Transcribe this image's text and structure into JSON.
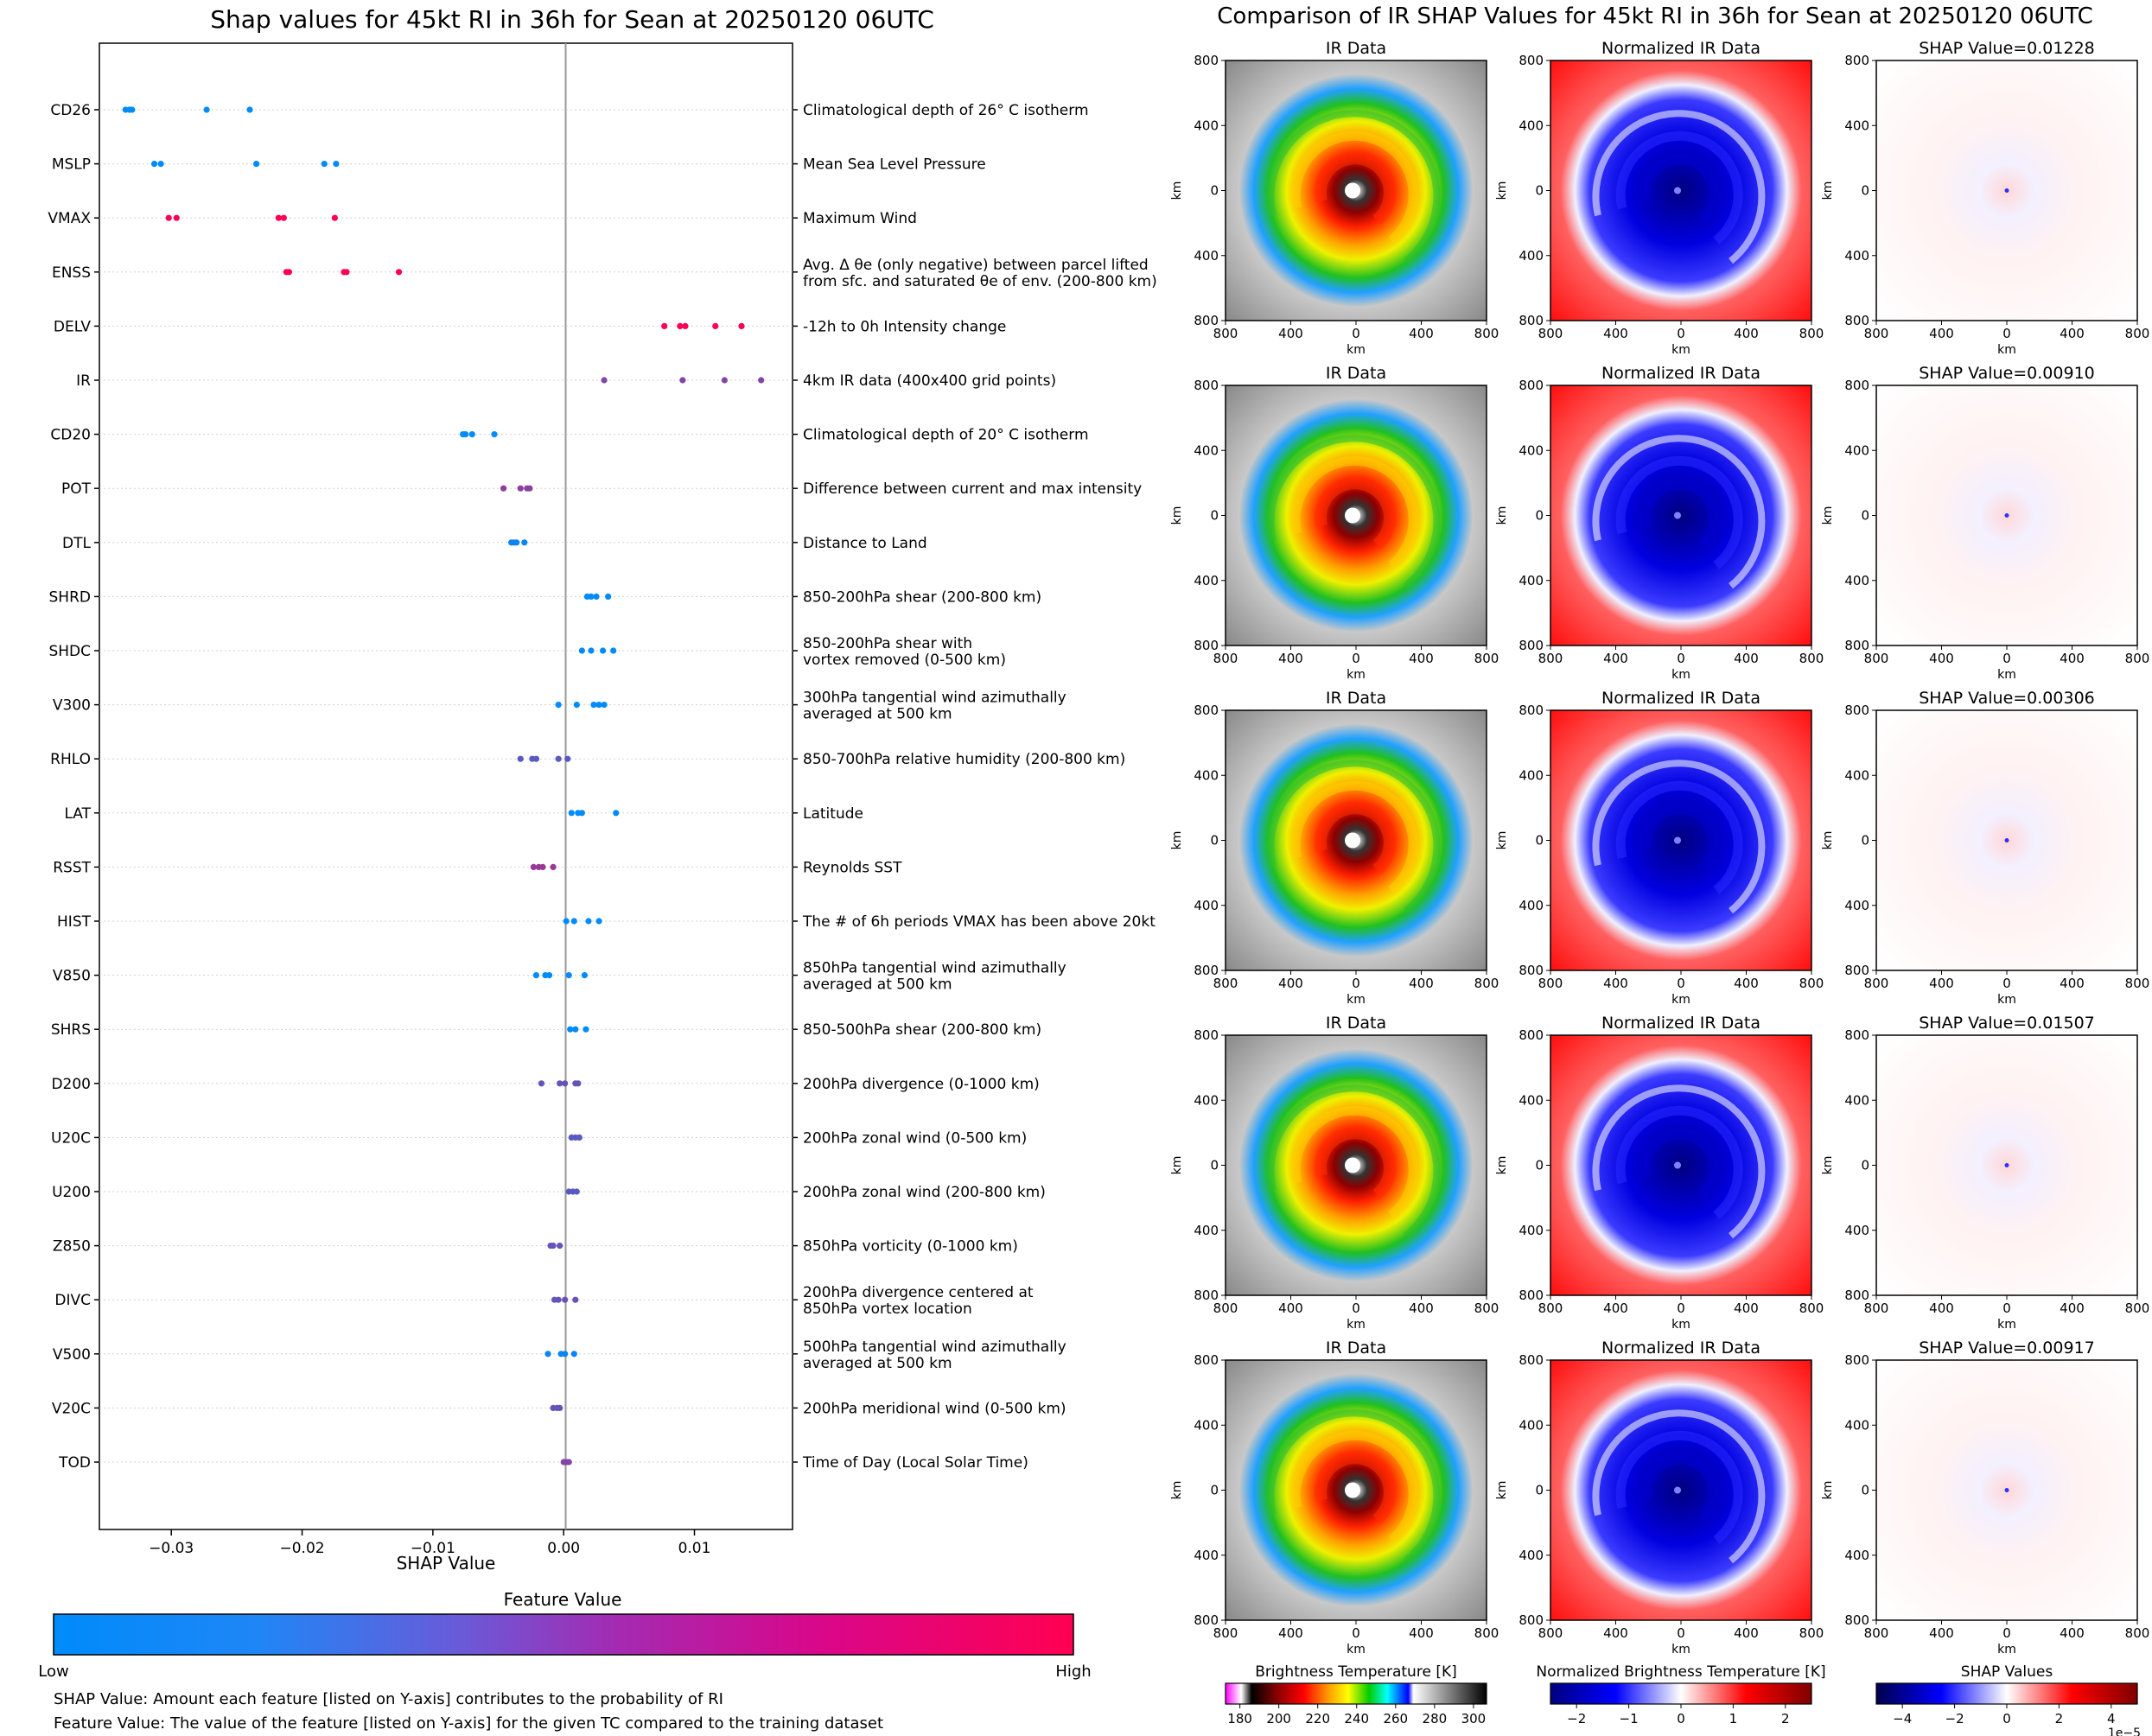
{
  "left_title": "Shap values for 45kt RI in 36h for Sean at 20250120 06UTC",
  "right_title": "Comparison of IR SHAP Values for 45kt RI in 36h for Sean at 20250120 06UTC",
  "xlabel": "SHAP Value",
  "colorbar": {
    "title": "Feature Value",
    "low_label": "Low",
    "high_label": "High",
    "colors": [
      "#008bfb",
      "#ff0052"
    ]
  },
  "footnotes": [
    "SHAP Value: Amount each feature [listed on Y-axis] contributes to the probability of RI",
    "Feature Value: The value of the feature [listed on Y-axis] for the given TC compared to the training dataset"
  ],
  "chart_data": [
    {
      "type": "scatter",
      "title": "Shap values for 45kt RI in 36h for Sean at 20250120 06UTC",
      "xlabel": "SHAP Value",
      "xlim": [
        -0.0355,
        0.0175
      ],
      "xticks": [
        -0.03,
        -0.02,
        -0.01,
        0.0,
        0.01
      ],
      "xtick_labels": [
        "−0.03",
        "−0.02",
        "−0.01",
        "0.00",
        "0.01"
      ],
      "features": [
        {
          "name": "CD26",
          "desc": [
            "Climatological depth of 26° C isotherm"
          ],
          "fv": 0.0,
          "values": [
            -0.0335,
            -0.0332,
            -0.033,
            -0.0273,
            -0.024
          ]
        },
        {
          "name": "MSLP",
          "desc": [
            "Mean Sea Level Pressure"
          ],
          "fv": 0.0,
          "values": [
            -0.0313,
            -0.0308,
            -0.0235,
            -0.0183,
            -0.0174
          ]
        },
        {
          "name": "VMAX",
          "desc": [
            "Maximum Wind"
          ],
          "fv": 1.0,
          "values": [
            -0.0302,
            -0.0296,
            -0.0218,
            -0.0214,
            -0.0175
          ]
        },
        {
          "name": "ENSS",
          "desc": [
            "Avg. Δ θe (only negative) between parcel lifted",
            "from sfc. and saturated θe of env. (200-800 km)"
          ],
          "fv": 1.0,
          "values": [
            -0.0212,
            -0.021,
            -0.0168,
            -0.0166,
            -0.0126
          ]
        },
        {
          "name": "DELV",
          "desc": [
            "-12h to 0h Intensity change"
          ],
          "fv": 1.0,
          "values": [
            0.0077,
            0.0089,
            0.0093,
            0.0116,
            0.0136
          ]
        },
        {
          "name": "IR",
          "desc": [
            "4km IR data (400x400 grid points)"
          ],
          "fv": 0.5,
          "values": [
            0.0031,
            0.0091,
            0.0123,
            0.0151
          ]
        },
        {
          "name": "CD20",
          "desc": [
            "Climatological depth of 20° C isotherm"
          ],
          "fv": 0.0,
          "values": [
            -0.0077,
            -0.0075,
            -0.007,
            -0.0053
          ]
        },
        {
          "name": "POT",
          "desc": [
            "Difference between current and max intensity"
          ],
          "fv": 0.55,
          "values": [
            -0.0046,
            -0.0033,
            -0.0028,
            -0.0026
          ]
        },
        {
          "name": "DTL",
          "desc": [
            "Distance to Land"
          ],
          "fv": 0.05,
          "values": [
            -0.004,
            -0.0038,
            -0.0036,
            -0.003
          ]
        },
        {
          "name": "SHRD",
          "desc": [
            "850-200hPa shear (200-800 km)"
          ],
          "fv": 0.0,
          "values": [
            0.0018,
            0.0021,
            0.0025,
            0.0034
          ]
        },
        {
          "name": "SHDC",
          "desc": [
            "850-200hPa shear with",
            "vortex removed (0-500 km)"
          ],
          "fv": 0.0,
          "values": [
            0.0014,
            0.0021,
            0.003,
            0.0038
          ]
        },
        {
          "name": "V300",
          "desc": [
            "300hPa tangential wind azimuthally",
            "averaged at 500 km"
          ],
          "fv": 0.0,
          "values": [
            -0.0004,
            0.001,
            0.0023,
            0.0027,
            0.0031
          ]
        },
        {
          "name": "RHLO",
          "desc": [
            "850-700hPa relative humidity (200-800 km)"
          ],
          "fv": 0.35,
          "values": [
            -0.0033,
            -0.0024,
            -0.0021,
            -0.0004,
            0.0003
          ]
        },
        {
          "name": "LAT",
          "desc": [
            "Latitude"
          ],
          "fv": 0.0,
          "values": [
            0.0006,
            0.0011,
            0.0014,
            0.004
          ]
        },
        {
          "name": "RSST",
          "desc": [
            "Reynolds SST"
          ],
          "fv": 0.6,
          "values": [
            -0.0023,
            -0.0019,
            -0.0016,
            -0.0008
          ]
        },
        {
          "name": "HIST",
          "desc": [
            "The # of 6h periods VMAX has been above 20kt"
          ],
          "fv": 0.0,
          "values": [
            0.0002,
            0.0008,
            0.0019,
            0.0027
          ]
        },
        {
          "name": "V850",
          "desc": [
            "850hPa tangential wind azimuthally",
            "averaged at 500 km"
          ],
          "fv": 0.0,
          "values": [
            -0.0021,
            -0.0014,
            -0.0011,
            0.0004,
            0.0016
          ]
        },
        {
          "name": "SHRS",
          "desc": [
            "850-500hPa shear (200-800 km)"
          ],
          "fv": 0.0,
          "values": [
            0.0005,
            0.0009,
            0.0017
          ]
        },
        {
          "name": "D200",
          "desc": [
            "200hPa divergence (0-1000 km)"
          ],
          "fv": 0.4,
          "values": [
            -0.0017,
            -0.0003,
            0.0001,
            0.0009,
            0.0011
          ]
        },
        {
          "name": "U20C",
          "desc": [
            "200hPa zonal wind (0-500 km)"
          ],
          "fv": 0.35,
          "values": [
            0.0006,
            0.0009,
            0.0012
          ]
        },
        {
          "name": "U200",
          "desc": [
            "200hPa zonal wind (200-800 km)"
          ],
          "fv": 0.35,
          "values": [
            0.0004,
            0.0007,
            0.001
          ]
        },
        {
          "name": "Z850",
          "desc": [
            "850hPa vorticity (0-1000 km)"
          ],
          "fv": 0.4,
          "values": [
            -0.001,
            -0.0008,
            -0.0003
          ]
        },
        {
          "name": "DIVC",
          "desc": [
            "200hPa divergence centered at",
            "850hPa vortex location"
          ],
          "fv": 0.4,
          "values": [
            -0.0007,
            -0.0004,
            0.0001,
            0.0009
          ]
        },
        {
          "name": "V500",
          "desc": [
            "500hPa tangential wind azimuthally",
            "averaged at 500 km"
          ],
          "fv": 0.05,
          "values": [
            -0.0012,
            -0.0002,
            0.0001,
            0.0008
          ]
        },
        {
          "name": "V20C",
          "desc": [
            "200hPa meridional wind (0-500 km)"
          ],
          "fv": 0.4,
          "values": [
            -0.0008,
            -0.0005,
            -0.0003
          ]
        },
        {
          "name": "TOD",
          "desc": [
            "Time of Day (Local Solar Time)"
          ],
          "fv": 0.5,
          "values": [
            0.0,
            0.0002,
            0.0004
          ]
        }
      ]
    },
    {
      "type": "heatmap",
      "title": "Comparison of IR SHAP Values for 45kt RI in 36h for Sean at 20250120 06UTC",
      "columns": [
        "IR Data",
        "Normalized IR Data",
        "SHAP Value"
      ],
      "shap_values": [
        "SHAP Value=0.01228",
        "SHAP Value=0.00910",
        "SHAP Value=0.00306",
        "SHAP Value=0.01507",
        "SHAP Value=0.00917"
      ],
      "xlabel": "km",
      "ylabel": "km",
      "ticks": [
        "800",
        "400",
        "0",
        "400",
        "800"
      ],
      "colorbars": [
        {
          "label": "Brightness Temperature [K]",
          "ticks": [
            "180",
            "200",
            "220",
            "240",
            "260",
            "280",
            "300"
          ]
        },
        {
          "label": "Normalized Brightness Temperature [K]",
          "ticks": [
            "−2",
            "−1",
            "0",
            "1",
            "2"
          ]
        },
        {
          "label": "SHAP Values",
          "ticks": [
            "−4",
            "−2",
            "0",
            "2",
            "4"
          ],
          "offset": "1e−5"
        }
      ]
    }
  ]
}
